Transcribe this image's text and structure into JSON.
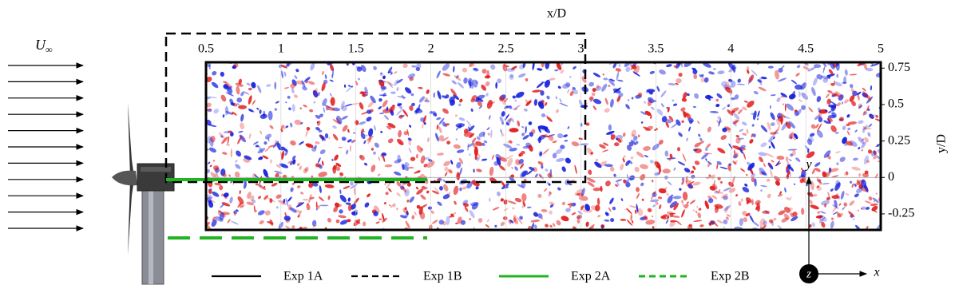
{
  "figure": {
    "x_axis": {
      "label": "x/D",
      "lim": [
        0.5,
        5
      ],
      "ticks": [
        0.5,
        1,
        1.5,
        2,
        2.5,
        3,
        3.5,
        4,
        4.5,
        5
      ]
    },
    "y_axis": {
      "label": "y/D",
      "lim": [
        -0.36,
        0.79
      ],
      "ticks": [
        0.75,
        0.5,
        0.25,
        0,
        -0.25
      ]
    },
    "inflow_label": {
      "symbol": "U",
      "subscript": "∞"
    },
    "legend": [
      {
        "name": "Exp 1A",
        "color": "#000000",
        "dashed": false
      },
      {
        "name": "Exp 1B",
        "color": "#000000",
        "dashed": true
      },
      {
        "name": "Exp 2A",
        "color": "#22b322",
        "dashed": false
      },
      {
        "name": "Exp 2B",
        "color": "#22b322",
        "dashed": true
      }
    ],
    "coordinate_labels": {
      "x": "x",
      "y": "y",
      "z": "z"
    }
  }
}
